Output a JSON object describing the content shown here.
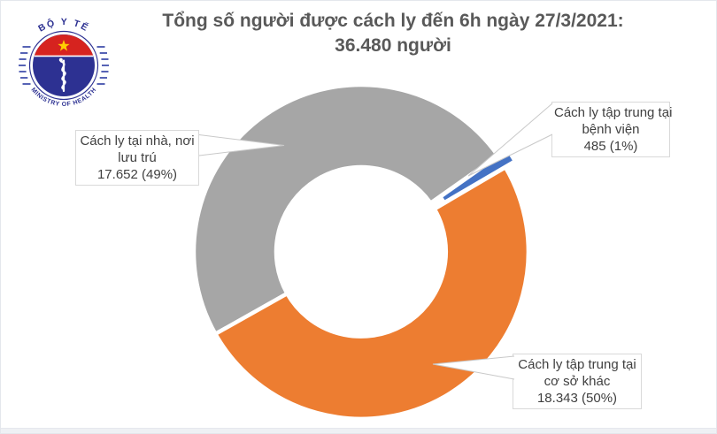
{
  "page": {
    "background": "#ffffff",
    "border_color": "#e4e7ec",
    "bottom_strip_color": "#eef0f4"
  },
  "logo": {
    "description": "Ministry of Health of Vietnam circular emblem",
    "arc_text_top": "BỘ Y TẾ",
    "arc_text_bottom": "MINISTRY OF HEALTH",
    "colors": {
      "blue": "#2d3192",
      "red": "#d6231f",
      "star_yellow": "#ffcf01",
      "staff_white": "#ffffff",
      "stripe_blue": "#4553ae"
    }
  },
  "title": {
    "line1": "Tổng số người được cách ly đến 6h ngày 27/3/2021:",
    "line2": "36.480 người",
    "color": "#595959"
  },
  "chart_data": {
    "type": "pie",
    "subtype": "doughnut",
    "title": "Tổng số người được cách ly đến 6h ngày 27/3/2021: 36.480 người",
    "total": 36480,
    "units": "người",
    "start_angle_deg": 240.6,
    "direction": "clockwise",
    "inner_radius_ratio": 0.51,
    "legend_position": "none",
    "labels_style": "callout boxes with white leader-line wedges",
    "slice_gap_color": "#ffffff",
    "slices": [
      {
        "id": "home",
        "category": "Cách ly tại nhà, nơi lưu trú",
        "value": 17652,
        "value_label": "17.652",
        "percent_label": "49%",
        "color": "#a6a6a6",
        "exploded": false,
        "callout_lines": [
          "Cách ly tại nhà, nơi",
          "lưu trú",
          "17.652 (49%)"
        ]
      },
      {
        "id": "hospital",
        "category": "Cách ly tập trung tại bệnh viện",
        "value": 485,
        "value_label": "485",
        "percent_label": "1%",
        "color": "#4472c4",
        "exploded": true,
        "callout_lines": [
          "Cách ly tập trung tại",
          "bệnh viện",
          "485 (1%)"
        ]
      },
      {
        "id": "other",
        "category": "Cách ly tập trung tại cơ sở khác",
        "value": 18343,
        "value_label": "18.343",
        "percent_label": "50%",
        "color": "#ed7d31",
        "exploded": false,
        "callout_lines": [
          "Cách ly tập trung tại",
          "cơ sở khác",
          "18.343 (50%)"
        ]
      }
    ]
  }
}
